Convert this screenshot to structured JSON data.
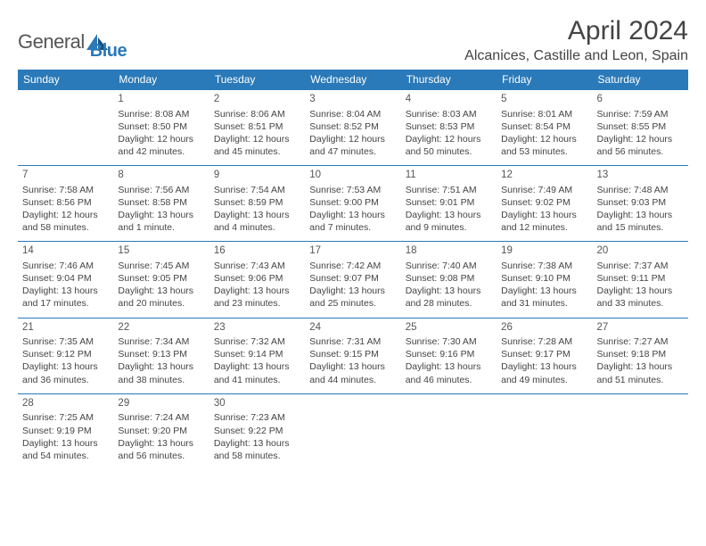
{
  "brand": {
    "name1": "General",
    "name2": "Blue"
  },
  "title": "April 2024",
  "location": "Alcanices, Castille and Leon, Spain",
  "colors": {
    "header_bg": "#2a79b8",
    "header_text": "#ffffff",
    "rule": "#2a79b8",
    "body_text": "#444444",
    "page_bg": "#ffffff"
  },
  "weekdays": [
    "Sunday",
    "Monday",
    "Tuesday",
    "Wednesday",
    "Thursday",
    "Friday",
    "Saturday"
  ],
  "grid": [
    [
      null,
      {
        "d": "1",
        "sr": "Sunrise: 8:08 AM",
        "ss": "Sunset: 8:50 PM",
        "dl1": "Daylight: 12 hours",
        "dl2": "and 42 minutes."
      },
      {
        "d": "2",
        "sr": "Sunrise: 8:06 AM",
        "ss": "Sunset: 8:51 PM",
        "dl1": "Daylight: 12 hours",
        "dl2": "and 45 minutes."
      },
      {
        "d": "3",
        "sr": "Sunrise: 8:04 AM",
        "ss": "Sunset: 8:52 PM",
        "dl1": "Daylight: 12 hours",
        "dl2": "and 47 minutes."
      },
      {
        "d": "4",
        "sr": "Sunrise: 8:03 AM",
        "ss": "Sunset: 8:53 PM",
        "dl1": "Daylight: 12 hours",
        "dl2": "and 50 minutes."
      },
      {
        "d": "5",
        "sr": "Sunrise: 8:01 AM",
        "ss": "Sunset: 8:54 PM",
        "dl1": "Daylight: 12 hours",
        "dl2": "and 53 minutes."
      },
      {
        "d": "6",
        "sr": "Sunrise: 7:59 AM",
        "ss": "Sunset: 8:55 PM",
        "dl1": "Daylight: 12 hours",
        "dl2": "and 56 minutes."
      }
    ],
    [
      {
        "d": "7",
        "sr": "Sunrise: 7:58 AM",
        "ss": "Sunset: 8:56 PM",
        "dl1": "Daylight: 12 hours",
        "dl2": "and 58 minutes."
      },
      {
        "d": "8",
        "sr": "Sunrise: 7:56 AM",
        "ss": "Sunset: 8:58 PM",
        "dl1": "Daylight: 13 hours",
        "dl2": "and 1 minute."
      },
      {
        "d": "9",
        "sr": "Sunrise: 7:54 AM",
        "ss": "Sunset: 8:59 PM",
        "dl1": "Daylight: 13 hours",
        "dl2": "and 4 minutes."
      },
      {
        "d": "10",
        "sr": "Sunrise: 7:53 AM",
        "ss": "Sunset: 9:00 PM",
        "dl1": "Daylight: 13 hours",
        "dl2": "and 7 minutes."
      },
      {
        "d": "11",
        "sr": "Sunrise: 7:51 AM",
        "ss": "Sunset: 9:01 PM",
        "dl1": "Daylight: 13 hours",
        "dl2": "and 9 minutes."
      },
      {
        "d": "12",
        "sr": "Sunrise: 7:49 AM",
        "ss": "Sunset: 9:02 PM",
        "dl1": "Daylight: 13 hours",
        "dl2": "and 12 minutes."
      },
      {
        "d": "13",
        "sr": "Sunrise: 7:48 AM",
        "ss": "Sunset: 9:03 PM",
        "dl1": "Daylight: 13 hours",
        "dl2": "and 15 minutes."
      }
    ],
    [
      {
        "d": "14",
        "sr": "Sunrise: 7:46 AM",
        "ss": "Sunset: 9:04 PM",
        "dl1": "Daylight: 13 hours",
        "dl2": "and 17 minutes."
      },
      {
        "d": "15",
        "sr": "Sunrise: 7:45 AM",
        "ss": "Sunset: 9:05 PM",
        "dl1": "Daylight: 13 hours",
        "dl2": "and 20 minutes."
      },
      {
        "d": "16",
        "sr": "Sunrise: 7:43 AM",
        "ss": "Sunset: 9:06 PM",
        "dl1": "Daylight: 13 hours",
        "dl2": "and 23 minutes."
      },
      {
        "d": "17",
        "sr": "Sunrise: 7:42 AM",
        "ss": "Sunset: 9:07 PM",
        "dl1": "Daylight: 13 hours",
        "dl2": "and 25 minutes."
      },
      {
        "d": "18",
        "sr": "Sunrise: 7:40 AM",
        "ss": "Sunset: 9:08 PM",
        "dl1": "Daylight: 13 hours",
        "dl2": "and 28 minutes."
      },
      {
        "d": "19",
        "sr": "Sunrise: 7:38 AM",
        "ss": "Sunset: 9:10 PM",
        "dl1": "Daylight: 13 hours",
        "dl2": "and 31 minutes."
      },
      {
        "d": "20",
        "sr": "Sunrise: 7:37 AM",
        "ss": "Sunset: 9:11 PM",
        "dl1": "Daylight: 13 hours",
        "dl2": "and 33 minutes."
      }
    ],
    [
      {
        "d": "21",
        "sr": "Sunrise: 7:35 AM",
        "ss": "Sunset: 9:12 PM",
        "dl1": "Daylight: 13 hours",
        "dl2": "and 36 minutes."
      },
      {
        "d": "22",
        "sr": "Sunrise: 7:34 AM",
        "ss": "Sunset: 9:13 PM",
        "dl1": "Daylight: 13 hours",
        "dl2": "and 38 minutes."
      },
      {
        "d": "23",
        "sr": "Sunrise: 7:32 AM",
        "ss": "Sunset: 9:14 PM",
        "dl1": "Daylight: 13 hours",
        "dl2": "and 41 minutes."
      },
      {
        "d": "24",
        "sr": "Sunrise: 7:31 AM",
        "ss": "Sunset: 9:15 PM",
        "dl1": "Daylight: 13 hours",
        "dl2": "and 44 minutes."
      },
      {
        "d": "25",
        "sr": "Sunrise: 7:30 AM",
        "ss": "Sunset: 9:16 PM",
        "dl1": "Daylight: 13 hours",
        "dl2": "and 46 minutes."
      },
      {
        "d": "26",
        "sr": "Sunrise: 7:28 AM",
        "ss": "Sunset: 9:17 PM",
        "dl1": "Daylight: 13 hours",
        "dl2": "and 49 minutes."
      },
      {
        "d": "27",
        "sr": "Sunrise: 7:27 AM",
        "ss": "Sunset: 9:18 PM",
        "dl1": "Daylight: 13 hours",
        "dl2": "and 51 minutes."
      }
    ],
    [
      {
        "d": "28",
        "sr": "Sunrise: 7:25 AM",
        "ss": "Sunset: 9:19 PM",
        "dl1": "Daylight: 13 hours",
        "dl2": "and 54 minutes."
      },
      {
        "d": "29",
        "sr": "Sunrise: 7:24 AM",
        "ss": "Sunset: 9:20 PM",
        "dl1": "Daylight: 13 hours",
        "dl2": "and 56 minutes."
      },
      {
        "d": "30",
        "sr": "Sunrise: 7:23 AM",
        "ss": "Sunset: 9:22 PM",
        "dl1": "Daylight: 13 hours",
        "dl2": "and 58 minutes."
      },
      null,
      null,
      null,
      null
    ]
  ]
}
